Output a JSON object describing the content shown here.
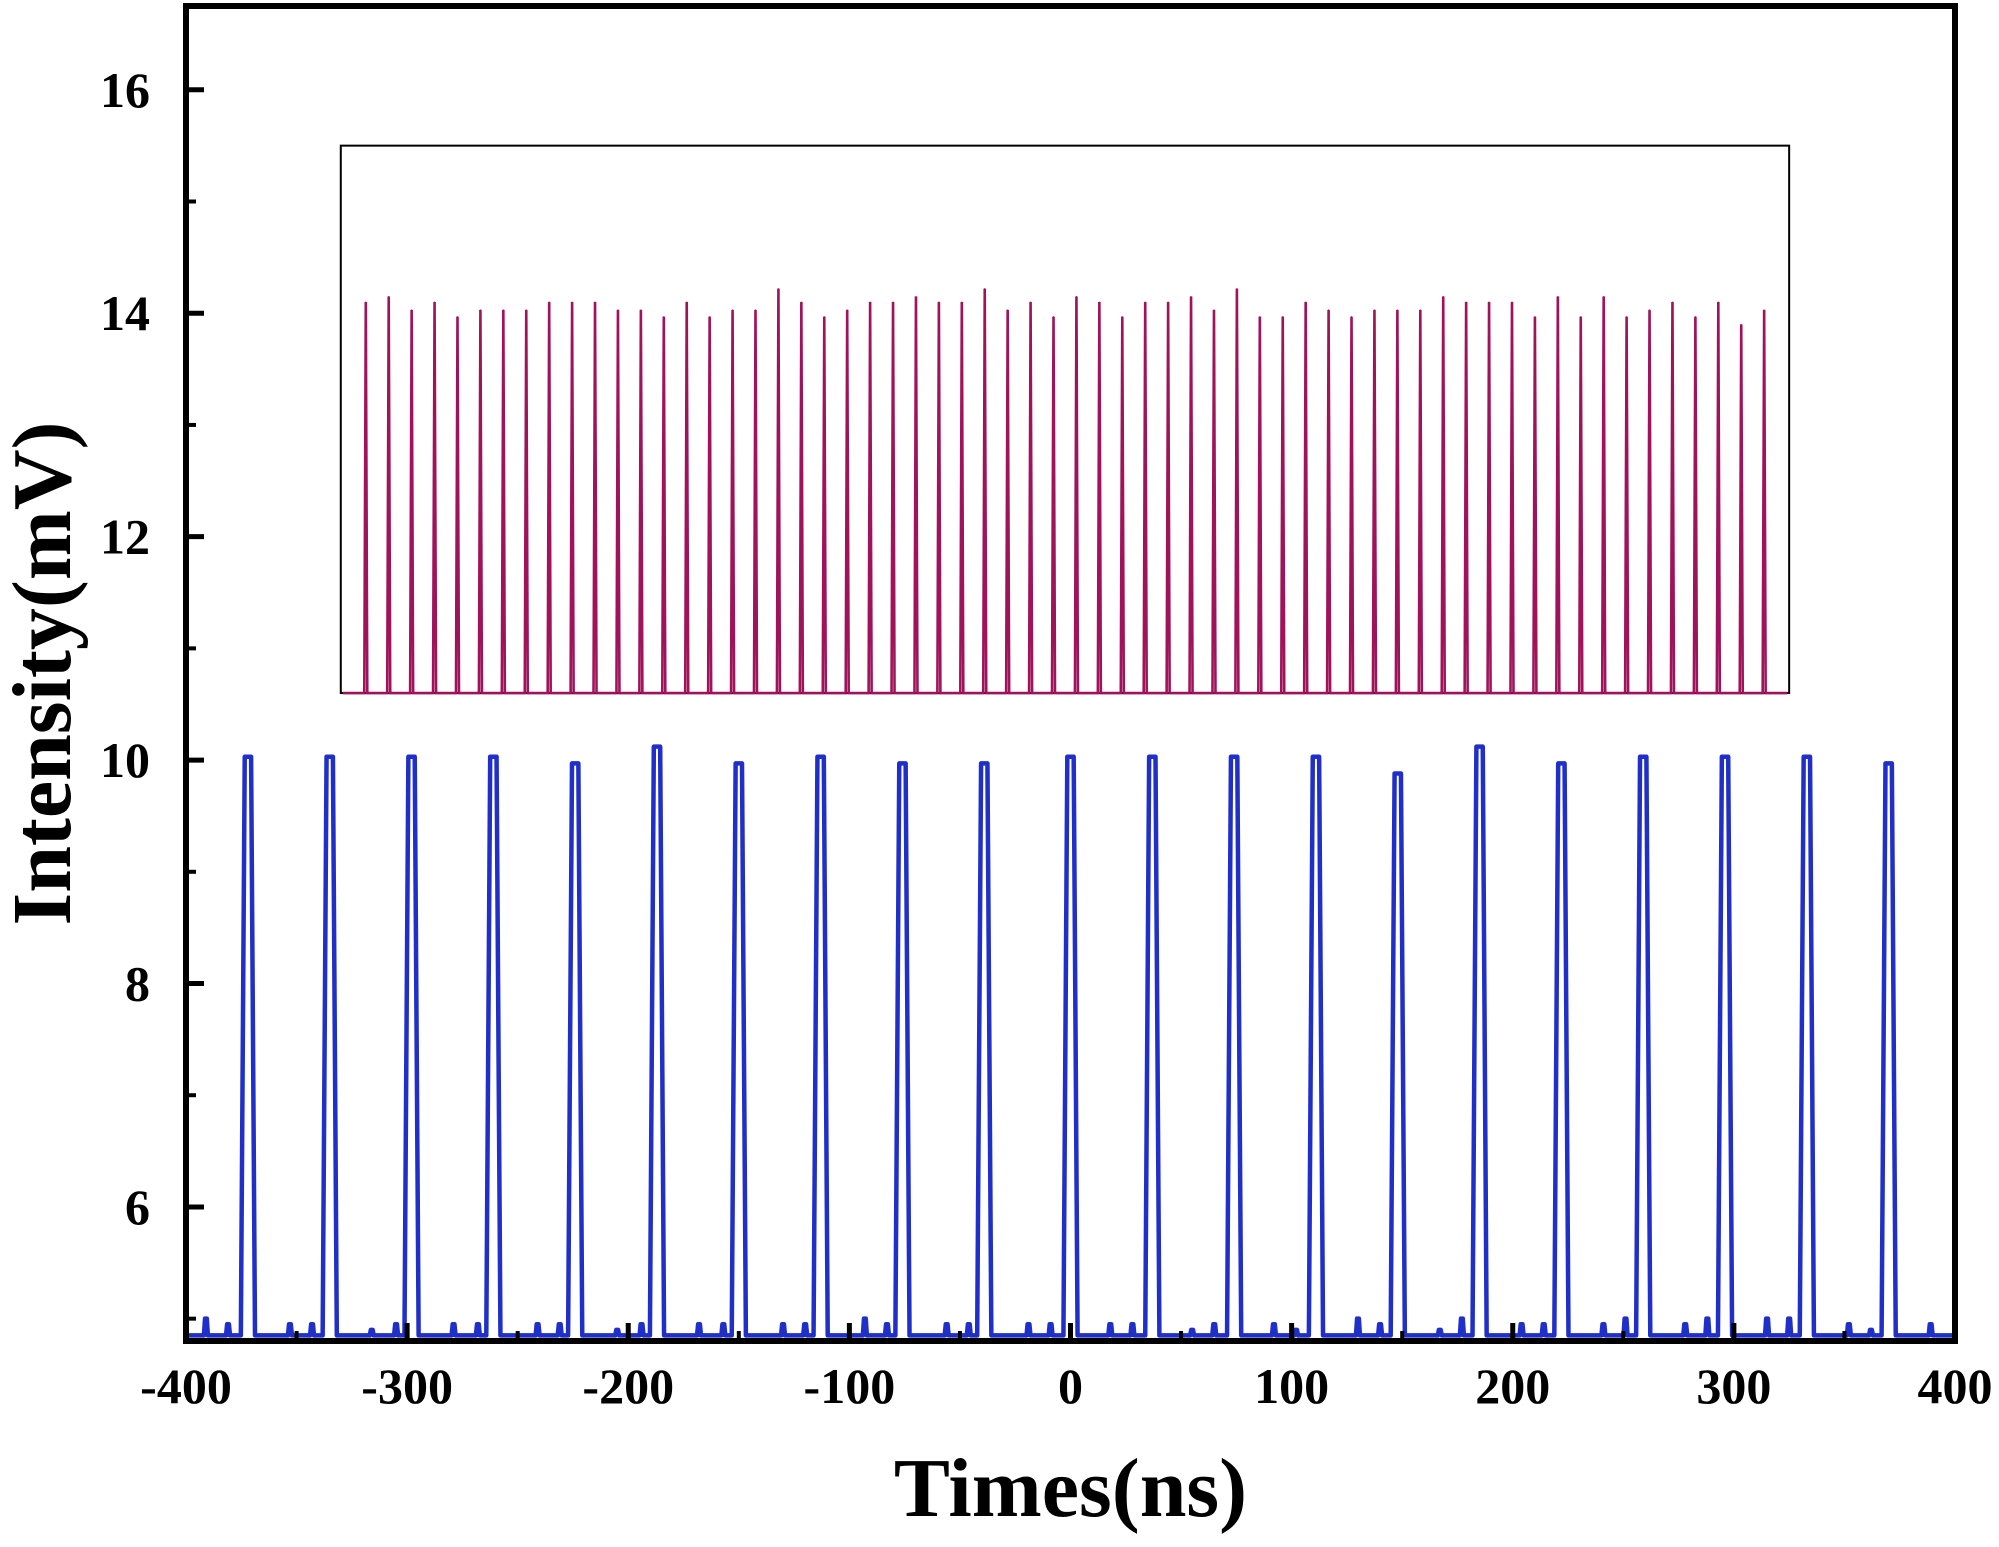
{
  "chart_data": {
    "type": "line",
    "xlabel": "Times(ns)",
    "ylabel": "Intensity(mV)",
    "xlim": [
      -400,
      400
    ],
    "ylim": [
      4.8,
      16.75
    ],
    "xticks": [
      -400,
      -300,
      -200,
      -100,
      0,
      100,
      200,
      300,
      400
    ],
    "yticks": [
      6,
      8,
      10,
      12,
      14,
      16
    ],
    "grid": false,
    "legend": "none",
    "main_series": {
      "color": "#1f2fc8",
      "baseline": 4.85,
      "pulse_positions": [
        -372,
        -335,
        -298,
        -261,
        -224,
        -187,
        -150,
        -113,
        -76,
        -39,
        0,
        37,
        74,
        111,
        148,
        185,
        222,
        259,
        296,
        333,
        370
      ],
      "pulse_peaks": [
        10.03,
        10.03,
        10.03,
        10.03,
        9.97,
        10.12,
        9.97,
        10.03,
        9.97,
        9.97,
        10.03,
        10.03,
        10.03,
        10.03,
        9.88,
        10.12,
        9.97,
        10.03,
        10.03,
        10.03,
        9.97
      ],
      "small_bump_positions": [
        -391,
        -381,
        -353,
        -343,
        -316,
        -305,
        -279,
        -268,
        -241,
        -231,
        -205,
        -194,
        -168,
        -157,
        -130,
        -120,
        -93,
        -83,
        -56,
        -46,
        -19,
        -9,
        18,
        28,
        55,
        65,
        92,
        102,
        130,
        140,
        167,
        177,
        204,
        214,
        241,
        251,
        278,
        288,
        315,
        325,
        352,
        362,
        389
      ],
      "small_bump_heights": [
        5.0,
        4.95,
        4.95,
        4.95,
        4.9,
        4.95,
        4.95,
        4.95,
        4.95,
        4.95,
        4.9,
        4.95,
        4.95,
        4.95,
        4.95,
        4.95,
        5.0,
        4.95,
        4.95,
        4.95,
        4.95,
        4.95,
        4.95,
        4.95,
        4.9,
        4.95,
        4.95,
        4.9,
        5.0,
        4.95,
        4.9,
        5.0,
        4.95,
        4.95,
        4.95,
        5.0,
        4.95,
        5.0,
        5.0,
        5.0,
        4.95,
        4.9,
        4.95
      ]
    },
    "inset_series": {
      "color": "#a0125a",
      "baseline": 10.6,
      "pulse_peaks": [
        14.1,
        14.15,
        14.03,
        14.1,
        13.97,
        14.03,
        14.03,
        14.03,
        14.1,
        14.1,
        14.1,
        14.03,
        14.03,
        13.97,
        14.1,
        13.97,
        14.03,
        14.03,
        14.22,
        14.1,
        13.97,
        14.03,
        14.1,
        14.1,
        14.15,
        14.1,
        14.1,
        14.22,
        14.03,
        14.1,
        13.97,
        14.15,
        14.1,
        13.97,
        14.1,
        14.1,
        14.15,
        14.03,
        14.22,
        13.97,
        13.97,
        14.1,
        14.03,
        13.97,
        14.03,
        14.03,
        14.03,
        14.15,
        14.1,
        14.1,
        14.1,
        13.97,
        14.15,
        13.97,
        14.15,
        13.97,
        14.03,
        14.1,
        13.97,
        14.1,
        13.9,
        14.03
      ]
    }
  }
}
